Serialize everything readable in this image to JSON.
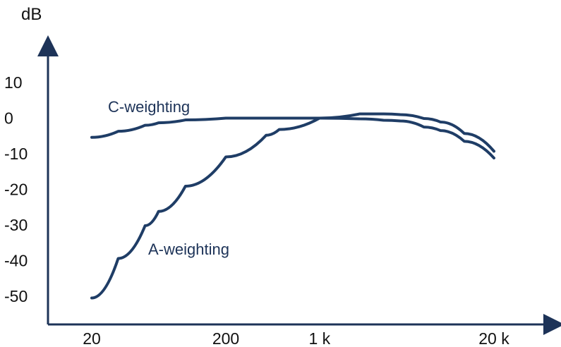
{
  "chart_data": {
    "type": "line",
    "title": "",
    "xlabel": "",
    "ylabel": "dB",
    "xscale": "log",
    "xlim": [
      20,
      20000
    ],
    "ylim": [
      -50,
      10
    ],
    "yticks": [
      10,
      0,
      -10,
      -20,
      -30,
      -40,
      -50
    ],
    "xticks": [
      {
        "value": 20,
        "label": "20"
      },
      {
        "value": 200,
        "label": "200"
      },
      {
        "value": 1000,
        "label": "1 k"
      },
      {
        "value": 20000,
        "label": "20 k"
      }
    ],
    "grid": false,
    "series": [
      {
        "name": "C-weighting",
        "color": "#1f3d66",
        "points": [
          {
            "x": 20,
            "y": -5.4
          },
          {
            "x": 31.5,
            "y": -3.7
          },
          {
            "x": 50,
            "y": -2.0
          },
          {
            "x": 63,
            "y": -1.3
          },
          {
            "x": 100,
            "y": -0.5
          },
          {
            "x": 200,
            "y": 0.0
          },
          {
            "x": 400,
            "y": 0.0
          },
          {
            "x": 1000,
            "y": 0.0
          },
          {
            "x": 2000,
            "y": -0.2
          },
          {
            "x": 3000,
            "y": -0.6
          },
          {
            "x": 4000,
            "y": -0.8
          },
          {
            "x": 6000,
            "y": -2.5
          },
          {
            "x": 8000,
            "y": -3.5
          },
          {
            "x": 12000,
            "y": -6.5
          },
          {
            "x": 20000,
            "y": -11.2
          }
        ]
      },
      {
        "name": "A-weighting",
        "color": "#1f3d66",
        "points": [
          {
            "x": 20,
            "y": -50.5
          },
          {
            "x": 31.5,
            "y": -39.4
          },
          {
            "x": 50,
            "y": -30.2
          },
          {
            "x": 63,
            "y": -26.2
          },
          {
            "x": 100,
            "y": -19.1
          },
          {
            "x": 200,
            "y": -10.9
          },
          {
            "x": 400,
            "y": -4.8
          },
          {
            "x": 500,
            "y": -3.2
          },
          {
            "x": 1000,
            "y": 0.0
          },
          {
            "x": 2000,
            "y": 1.2
          },
          {
            "x": 3000,
            "y": 1.2
          },
          {
            "x": 4000,
            "y": 1.0
          },
          {
            "x": 6000,
            "y": -0.1
          },
          {
            "x": 8000,
            "y": -1.1
          },
          {
            "x": 12000,
            "y": -4.3
          },
          {
            "x": 20000,
            "y": -9.3
          }
        ]
      }
    ]
  }
}
